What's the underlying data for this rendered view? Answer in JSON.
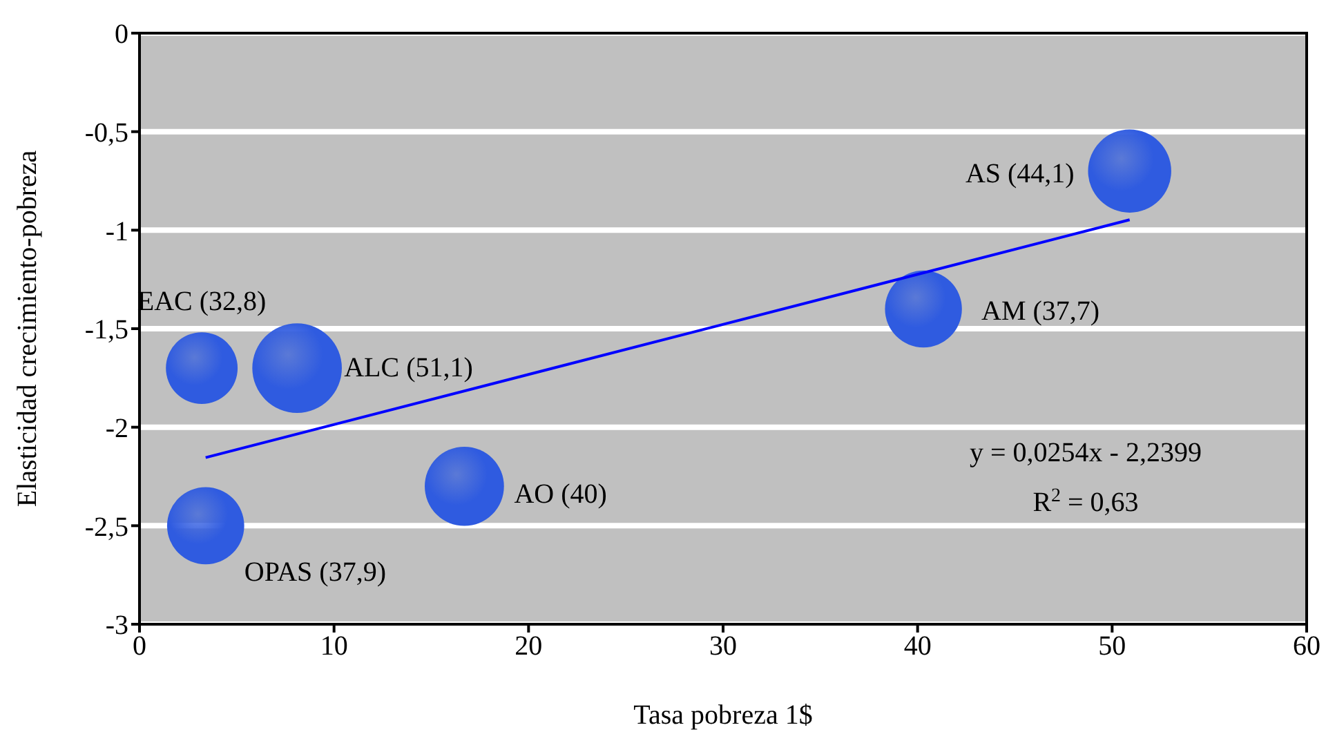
{
  "chart_data": {
    "type": "bubble",
    "xlabel": "Tasa pobreza 1$",
    "ylabel": "Elasticidad crecimiento-pobreza",
    "series": [
      {
        "color": "#2f5be0",
        "x": [
          3.2,
          8.1,
          16.7,
          3.4,
          40.3,
          50.9
        ],
        "values": [
          -1.7,
          -1.7,
          -2.3,
          -2.5,
          -1.4,
          -0.7
        ],
        "sizes": [
          0.642,
          1,
          0.783,
          0.742,
          0.738,
          0.863
        ]
      },
      {
        "type": "line",
        "color": "#0000ff",
        "x": [
          3.4,
          50.9
        ],
        "values": [
          -2.154,
          -0.947
        ]
      }
    ],
    "xlim": [
      0,
      60
    ],
    "xticks": [
      0,
      10,
      20,
      30,
      40,
      50,
      60
    ],
    "ylim": [
      -3,
      0
    ],
    "yticks": [
      {
        "value": -3,
        "label": "-3"
      },
      {
        "value": -2.5,
        "label": "-2,5"
      },
      {
        "value": -2,
        "label": "-2"
      },
      {
        "value": -1.5,
        "label": "-1,5"
      },
      {
        "value": -1,
        "label": "-1"
      },
      {
        "value": -0.5,
        "label": "-0,5"
      },
      {
        "value": 0,
        "label": "0"
      }
    ],
    "grid": "y",
    "legend": false,
    "annotations": [
      {
        "text": "EAC (32,8)",
        "x": 3.2,
        "y": -1.7
      },
      {
        "text": "ALC (51,1)",
        "x": 8.1,
        "y": -1.7
      },
      {
        "text": "AO (40)",
        "x": 16.7,
        "y": -2.3
      },
      {
        "text": "OPAS (37,9)",
        "x": 3.4,
        "y": -2.5
      },
      {
        "text": "AM (37,7)",
        "x": 40.3,
        "y": -1.4
      },
      {
        "text": "AS (44,1)",
        "x": 50.9,
        "y": -0.7
      },
      "y = 0,0254x - 2,2399",
      "R$^{2}$ = 0,63"
    ]
  }
}
